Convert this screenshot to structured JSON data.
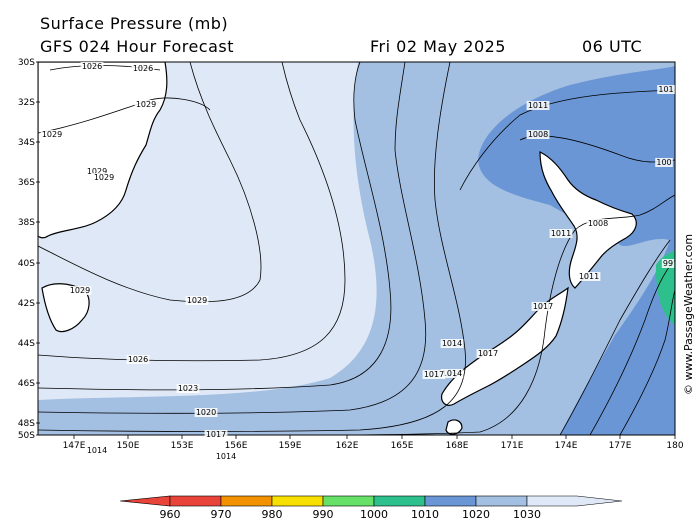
{
  "header": {
    "title": "Surface Pressure (mb)",
    "model": "GFS 024 Hour Forecast",
    "date": "Fri 02 May 2025",
    "time": "06 UTC"
  },
  "axes": {
    "lat_labels": [
      "30S",
      "32S",
      "34S",
      "36S",
      "38S",
      "40S",
      "42S",
      "44S",
      "46S",
      "48S",
      "50S"
    ],
    "lon_labels": [
      "147E",
      "150E",
      "153E",
      "156E",
      "159E",
      "162E",
      "165E",
      "168E",
      "171E",
      "174E",
      "177E",
      "180"
    ]
  },
  "isobar_labels": [
    {
      "id": "l1026a",
      "text": "1026"
    },
    {
      "id": "l1026b",
      "text": "1026"
    },
    {
      "id": "l1029a",
      "text": "1029"
    },
    {
      "id": "l1029b",
      "text": "1029"
    },
    {
      "id": "l1029c",
      "text": "1029"
    },
    {
      "id": "l1029d",
      "text": "1029"
    },
    {
      "id": "l1029e",
      "text": "1029"
    },
    {
      "id": "l1029f",
      "text": "1029"
    },
    {
      "id": "l1026c",
      "text": "1026"
    },
    {
      "id": "l1023",
      "text": "1023"
    },
    {
      "id": "l1020",
      "text": "1020"
    },
    {
      "id": "l1017a",
      "text": "1017"
    },
    {
      "id": "l1014a",
      "text": "1014"
    },
    {
      "id": "l1014b",
      "text": "1014"
    },
    {
      "id": "l1011a",
      "text": "1011"
    },
    {
      "id": "l1008a",
      "text": "1008"
    },
    {
      "id": "l1008b",
      "text": "1008"
    },
    {
      "id": "l1011b",
      "text": "1011"
    },
    {
      "id": "l1011c",
      "text": "1011"
    },
    {
      "id": "l1017b",
      "text": "1017"
    },
    {
      "id": "l1017c",
      "text": "1017"
    },
    {
      "id": "l1014c",
      "text": "1014"
    },
    {
      "id": "l1017d",
      "text": "1017"
    },
    {
      "id": "l101e",
      "text": "101"
    },
    {
      "id": "l100e",
      "text": "100"
    },
    {
      "id": "l99e",
      "text": "99"
    },
    {
      "id": "l1014d",
      "text": "1014"
    }
  ],
  "colorbar": {
    "labels": [
      "960",
      "970",
      "980",
      "990",
      "1000",
      "1010",
      "1020",
      "1030"
    ],
    "colors": [
      "#e8443a",
      "#f39200",
      "#f7e000",
      "#66e066",
      "#2dc08c",
      "#6b96d6",
      "#a3bfe2",
      "#dfe8f6"
    ]
  },
  "credit": "© www.PassageWeather.com"
}
